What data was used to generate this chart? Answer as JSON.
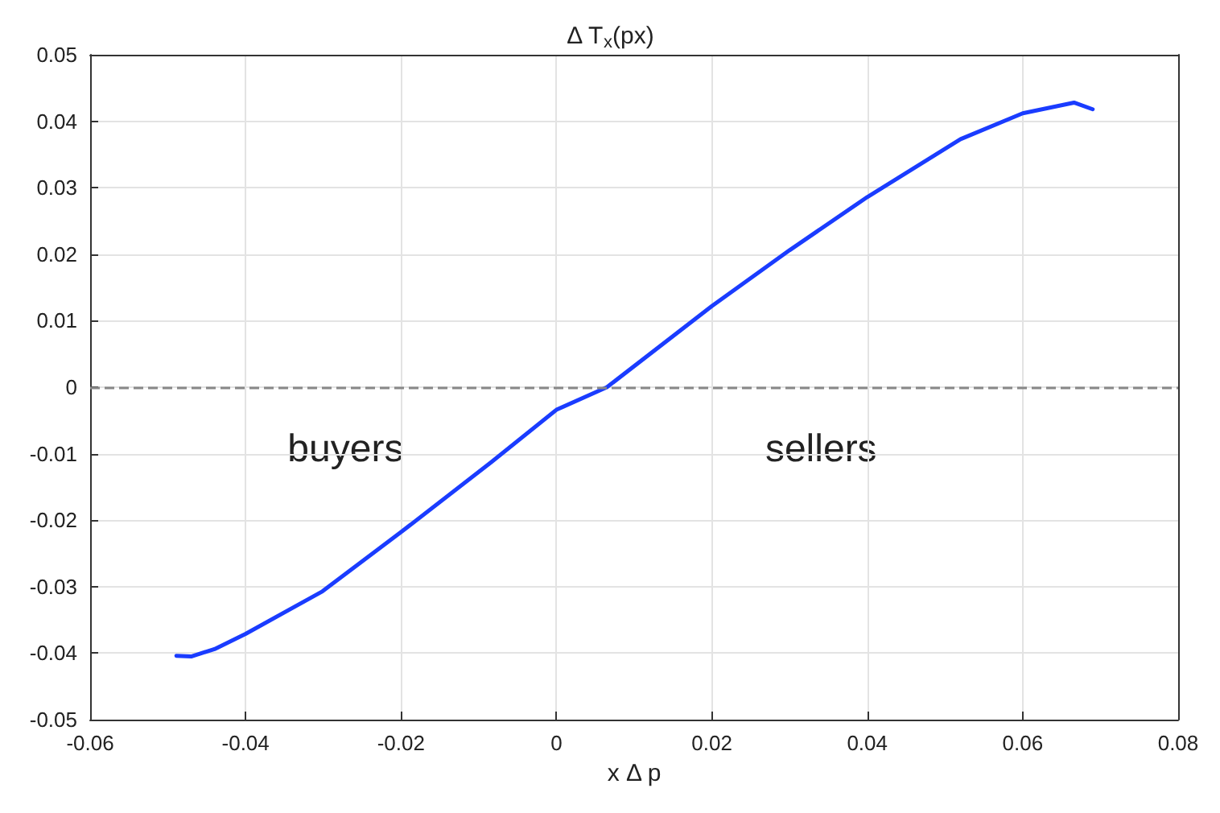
{
  "chart_data": {
    "type": "line",
    "title": "Δ T$_{x}$(px)",
    "xlabel": "x Δ p",
    "x": [
      -0.0489,
      -0.047,
      -0.044,
      -0.04,
      -0.0301,
      -0.02,
      -0.0084,
      0,
      0.0065,
      0.02,
      0.03,
      0.04,
      0.052,
      0.06,
      0.0666,
      0.069
    ],
    "series": [
      {
        "color": "#1a3cff",
        "values": [
          -0.0404,
          -0.0405,
          -0.0394,
          -0.0371,
          -0.0307,
          -0.0218,
          -0.0113,
          -0.0034,
          0,
          0.0122,
          0.0206,
          0.0286,
          0.0373,
          0.0412,
          0.0428,
          0.0418
        ]
      }
    ],
    "xlim": [
      -0.06,
      0.08
    ],
    "xticks": [
      -0.06,
      -0.04,
      -0.02,
      0,
      0.02,
      0.04,
      0.06,
      0.08
    ],
    "ylim": [
      -0.05,
      0.05
    ],
    "yticks": [
      -0.05,
      -0.04,
      -0.03,
      -0.02,
      -0.01,
      0,
      0.01,
      0.02,
      0.03,
      0.04,
      0.05
    ],
    "grid": true,
    "marker": "none",
    "line_style": "solid",
    "ref_lines": [
      {
        "axis": "y",
        "value": 0,
        "color": "#888888",
        "line_style": "dashed"
      }
    ],
    "annotations": [
      "buyers",
      "sellers"
    ]
  }
}
